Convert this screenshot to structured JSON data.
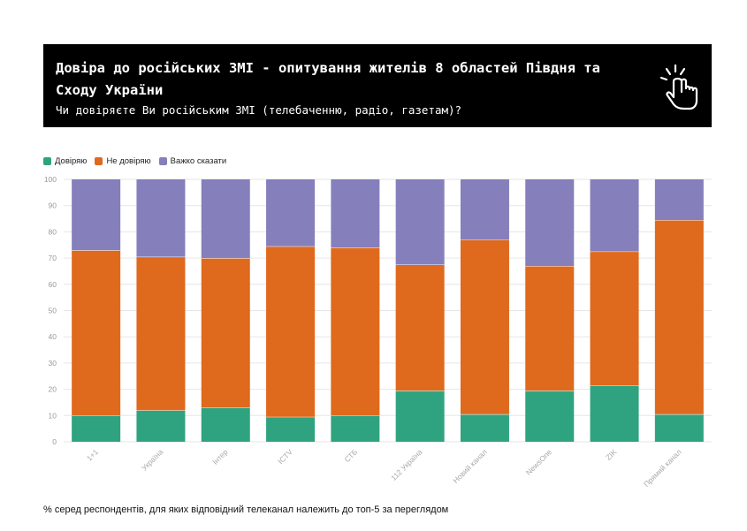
{
  "header": {
    "title": "Довіра до російських ЗМІ - опитування жителів 8 областей Півдня та Сходу України",
    "subtitle": "Чи довіряєте Ви російським ЗМІ (телебаченню, радіо, газетам)?",
    "icon": "pointing-hand-icon"
  },
  "colors": {
    "trust": "#2fa37f",
    "distrust": "#df691d",
    "hard_to_say": "#857fbc",
    "header_bg": "#000000"
  },
  "footnote": "% серед респондентів, для яких відповідний телеканал належить до топ-5 за переглядом",
  "chart_data": {
    "type": "bar",
    "stacked": true,
    "categories": [
      "1+1",
      "Україна",
      "Інтер",
      "ICTV",
      "СТБ",
      "112 Україна",
      "Новий канал",
      "NewsOne",
      "ZIK",
      "Прямий канал"
    ],
    "series": [
      {
        "name": "Довіряю",
        "color": "#2fa37f",
        "values": [
          10,
          12,
          13,
          9.5,
          10,
          19.5,
          10.5,
          19.5,
          21.5,
          10.5
        ]
      },
      {
        "name": "Не довіряю",
        "color": "#df691d",
        "values": [
          63,
          58.5,
          57,
          65,
          64,
          48,
          66.5,
          47.5,
          51,
          74
        ]
      },
      {
        "name": "Важко сказати",
        "color": "#857fbc",
        "values": [
          27,
          29.5,
          30,
          25.5,
          26,
          32.5,
          23,
          33,
          27.5,
          15.5
        ]
      }
    ],
    "ylim": [
      0,
      100
    ],
    "yticks": [
      0,
      10,
      20,
      30,
      40,
      50,
      60,
      70,
      80,
      90,
      100
    ],
    "grid": true,
    "legend": "top-left"
  }
}
